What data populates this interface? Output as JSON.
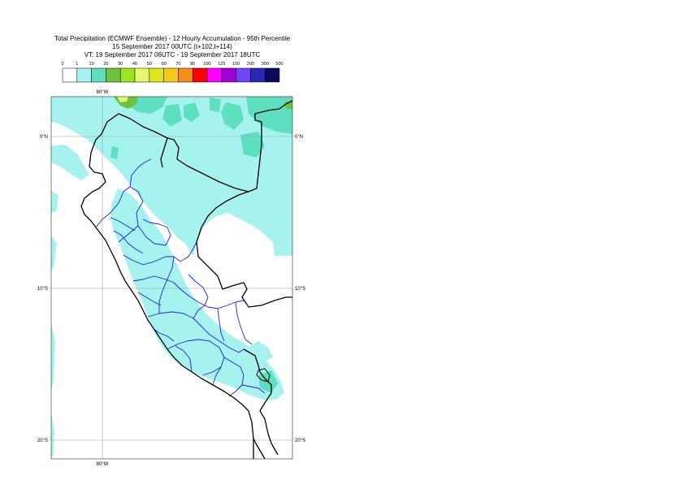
{
  "title": {
    "line1": "Total Precipitation (ECMWF Ensemble) - 12 Hourly Accumulation - 95th Percentile",
    "line2": "15 September 2017 00UTC (t+102,t+114)",
    "line3": "VT: 19 September 2017 06UTC - 19 September 2017 18UTC"
  },
  "legend": {
    "ticks": [
      "0",
      "1",
      "10",
      "20",
      "30",
      "40",
      "50",
      "60",
      "70",
      "80",
      "100",
      "125",
      "150",
      "200",
      "300",
      "500"
    ],
    "colors": [
      "#ffffff",
      "#a6f2ee",
      "#5ee0c0",
      "#6cc23c",
      "#9be61e",
      "#e6f870",
      "#dce61e",
      "#f5c81e",
      "#f58c1e",
      "#ff0000",
      "#ff00ff",
      "#a000d2",
      "#6e46ff",
      "#2828b4",
      "#0a0a5a"
    ]
  },
  "map": {
    "lon_labels": [
      "80°W",
      "80°W"
    ],
    "lat_labels": [
      "0°N",
      "0°N",
      "10°S",
      "10°S",
      "20°S",
      "20°S"
    ],
    "precip_colors": {
      "light": "#a6f2ee",
      "medium": "#5ee0c0",
      "green": "#6cc23c",
      "yellow": "#e6f870"
    },
    "border_colors": {
      "national": "#000000",
      "regional": "#1e1ee6",
      "grid": "#a0a0a0"
    }
  }
}
